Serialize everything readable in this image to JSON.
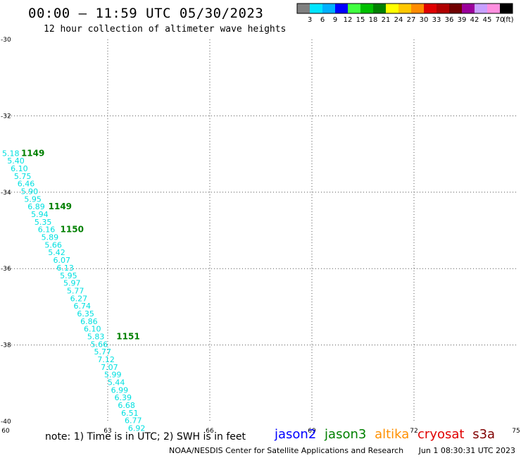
{
  "title": "00:00 – 11:59 UTC 05/30/2023",
  "subtitle": "12 hour collection of altimeter wave heights",
  "legend": {
    "colors": [
      "#808080",
      "#00e5ff",
      "#00b0ff",
      "#0000ff",
      "#40ff40",
      "#00c000",
      "#008000",
      "#ffff00",
      "#ffc800",
      "#ff8c00",
      "#e00000",
      "#b00000",
      "#700000",
      "#9b009b",
      "#c8a0ff",
      "#ff90e0",
      "#000000"
    ],
    "labels": [
      "3",
      "6",
      "9",
      "12",
      "15",
      "18",
      "21",
      "24",
      "27",
      "30",
      "33",
      "36",
      "39",
      "42",
      "45",
      "70"
    ],
    "unit": "(ft)"
  },
  "map": {
    "lon_range": [
      60,
      75
    ],
    "lat_range": [
      -40,
      -30
    ],
    "lon_ticks": [
      "60",
      "63",
      "66",
      "69",
      "72",
      "75"
    ],
    "lat_ticks": [
      "-30",
      "-32",
      "-34",
      "-36",
      "-38",
      "-40"
    ],
    "grid": "dotted"
  },
  "chart_data": {
    "type": "scatter",
    "xlabel": "",
    "ylabel": "",
    "xlim": [
      60,
      75
    ],
    "ylim": [
      -40,
      -30
    ],
    "series": [
      {
        "name": "jason3",
        "color": "#00e0e0",
        "points": [
          {
            "lon": 60.15,
            "lat": -33.05,
            "v": "5.18"
          },
          {
            "lon": 60.3,
            "lat": -33.25,
            "v": "5.40"
          },
          {
            "lon": 60.4,
            "lat": -33.45,
            "v": "6.10"
          },
          {
            "lon": 60.5,
            "lat": -33.65,
            "v": "5.75"
          },
          {
            "lon": 60.6,
            "lat": -33.85,
            "v": "6.46"
          },
          {
            "lon": 60.7,
            "lat": -34.05,
            "v": "5.90"
          },
          {
            "lon": 60.8,
            "lat": -34.25,
            "v": "5.95"
          },
          {
            "lon": 60.9,
            "lat": -34.45,
            "v": "6.89"
          },
          {
            "lon": 61.0,
            "lat": -34.65,
            "v": "5.94"
          },
          {
            "lon": 61.1,
            "lat": -34.85,
            "v": "5.35"
          },
          {
            "lon": 61.2,
            "lat": -35.05,
            "v": "6.16"
          },
          {
            "lon": 61.3,
            "lat": -35.25,
            "v": "5.89"
          },
          {
            "lon": 61.4,
            "lat": -35.45,
            "v": "5.66"
          },
          {
            "lon": 61.5,
            "lat": -35.65,
            "v": "5.42"
          },
          {
            "lon": 61.65,
            "lat": -35.85,
            "v": "6.07"
          },
          {
            "lon": 61.75,
            "lat": -36.05,
            "v": "6.13"
          },
          {
            "lon": 61.85,
            "lat": -36.25,
            "v": "5.95"
          },
          {
            "lon": 61.95,
            "lat": -36.45,
            "v": "5.97"
          },
          {
            "lon": 62.05,
            "lat": -36.65,
            "v": "5.77"
          },
          {
            "lon": 62.15,
            "lat": -36.85,
            "v": "6.27"
          },
          {
            "lon": 62.25,
            "lat": -37.05,
            "v": "6.74"
          },
          {
            "lon": 62.35,
            "lat": -37.25,
            "v": "6.35"
          },
          {
            "lon": 62.45,
            "lat": -37.45,
            "v": "6.86"
          },
          {
            "lon": 62.55,
            "lat": -37.65,
            "v": "6.10"
          },
          {
            "lon": 62.65,
            "lat": -37.85,
            "v": "5.83"
          },
          {
            "lon": 62.75,
            "lat": -38.05,
            "v": "5.66"
          },
          {
            "lon": 62.85,
            "lat": -38.25,
            "v": "5.77"
          },
          {
            "lon": 62.95,
            "lat": -38.45,
            "v": "7.12"
          },
          {
            "lon": 63.05,
            "lat": -38.65,
            "v": "7.07"
          },
          {
            "lon": 63.15,
            "lat": -38.85,
            "v": "5.99"
          },
          {
            "lon": 63.25,
            "lat": -39.05,
            "v": "5.44"
          },
          {
            "lon": 63.35,
            "lat": -39.25,
            "v": "6.99"
          },
          {
            "lon": 63.45,
            "lat": -39.45,
            "v": "6.39"
          },
          {
            "lon": 63.55,
            "lat": -39.65,
            "v": "6.68"
          },
          {
            "lon": 63.65,
            "lat": -39.85,
            "v": "6.51"
          },
          {
            "lon": 63.75,
            "lat": -40.05,
            "v": "6.77"
          },
          {
            "lon": 63.85,
            "lat": -40.25,
            "v": "6.92"
          }
        ]
      }
    ],
    "time_labels": [
      {
        "lon": 60.8,
        "lat": -33.05,
        "v": "1149",
        "color": "#008000"
      },
      {
        "lon": 61.6,
        "lat": -34.45,
        "v": "1149",
        "color": "#008000"
      },
      {
        "lon": 61.95,
        "lat": -35.05,
        "v": "1150",
        "color": "#008000"
      },
      {
        "lon": 63.6,
        "lat": -37.85,
        "v": "1151",
        "color": "#008000"
      }
    ]
  },
  "note": "note: 1) Time is in UTC; 2) SWH is in feet",
  "satellites": [
    {
      "name": "jason2",
      "color": "#0000ff"
    },
    {
      "name": "jason3",
      "color": "#008000"
    },
    {
      "name": "altika",
      "color": "#ff9000"
    },
    {
      "name": "cryosat",
      "color": "#e00000"
    },
    {
      "name": "s3a",
      "color": "#800000"
    }
  ],
  "footer": {
    "credit": "NOAA/NESDIS Center for Satellite Applications and Research",
    "timestamp": "Jun  1 08:30:31 UTC 2023"
  }
}
